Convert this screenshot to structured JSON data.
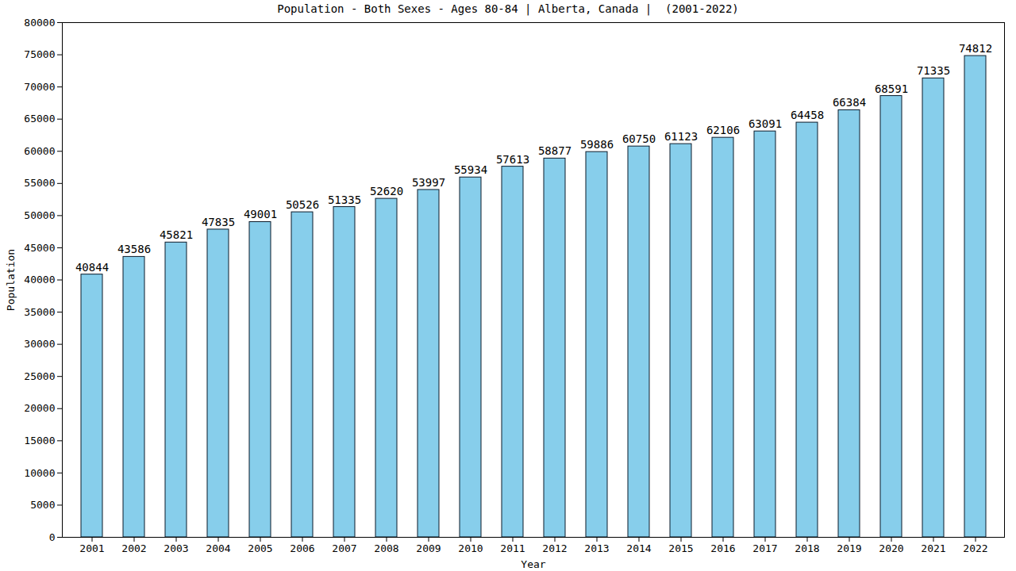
{
  "chart_data": {
    "type": "bar",
    "title": "Population - Both Sexes - Ages 80-84 | Alberta, Canada |  (2001-2022)",
    "x_label": "Year",
    "y_label": "Population",
    "categories": [
      "2001",
      "2002",
      "2003",
      "2004",
      "2005",
      "2006",
      "2007",
      "2008",
      "2009",
      "2010",
      "2011",
      "2012",
      "2013",
      "2014",
      "2015",
      "2016",
      "2017",
      "2018",
      "2019",
      "2020",
      "2021",
      "2022"
    ],
    "values": [
      40844,
      43586,
      45821,
      47835,
      49001,
      50526,
      51335,
      52620,
      53997,
      55934,
      57613,
      58877,
      59886,
      60750,
      61123,
      62106,
      63091,
      64458,
      66384,
      68591,
      71335,
      74812
    ],
    "color": "#87ceeb",
    "ylim": [
      0,
      80000
    ],
    "yticks": [
      0,
      5000,
      10000,
      15000,
      20000,
      25000,
      30000,
      35000,
      40000,
      45000,
      50000,
      55000,
      60000,
      65000,
      70000,
      75000,
      80000
    ],
    "grid": false,
    "data_labels": true
  }
}
